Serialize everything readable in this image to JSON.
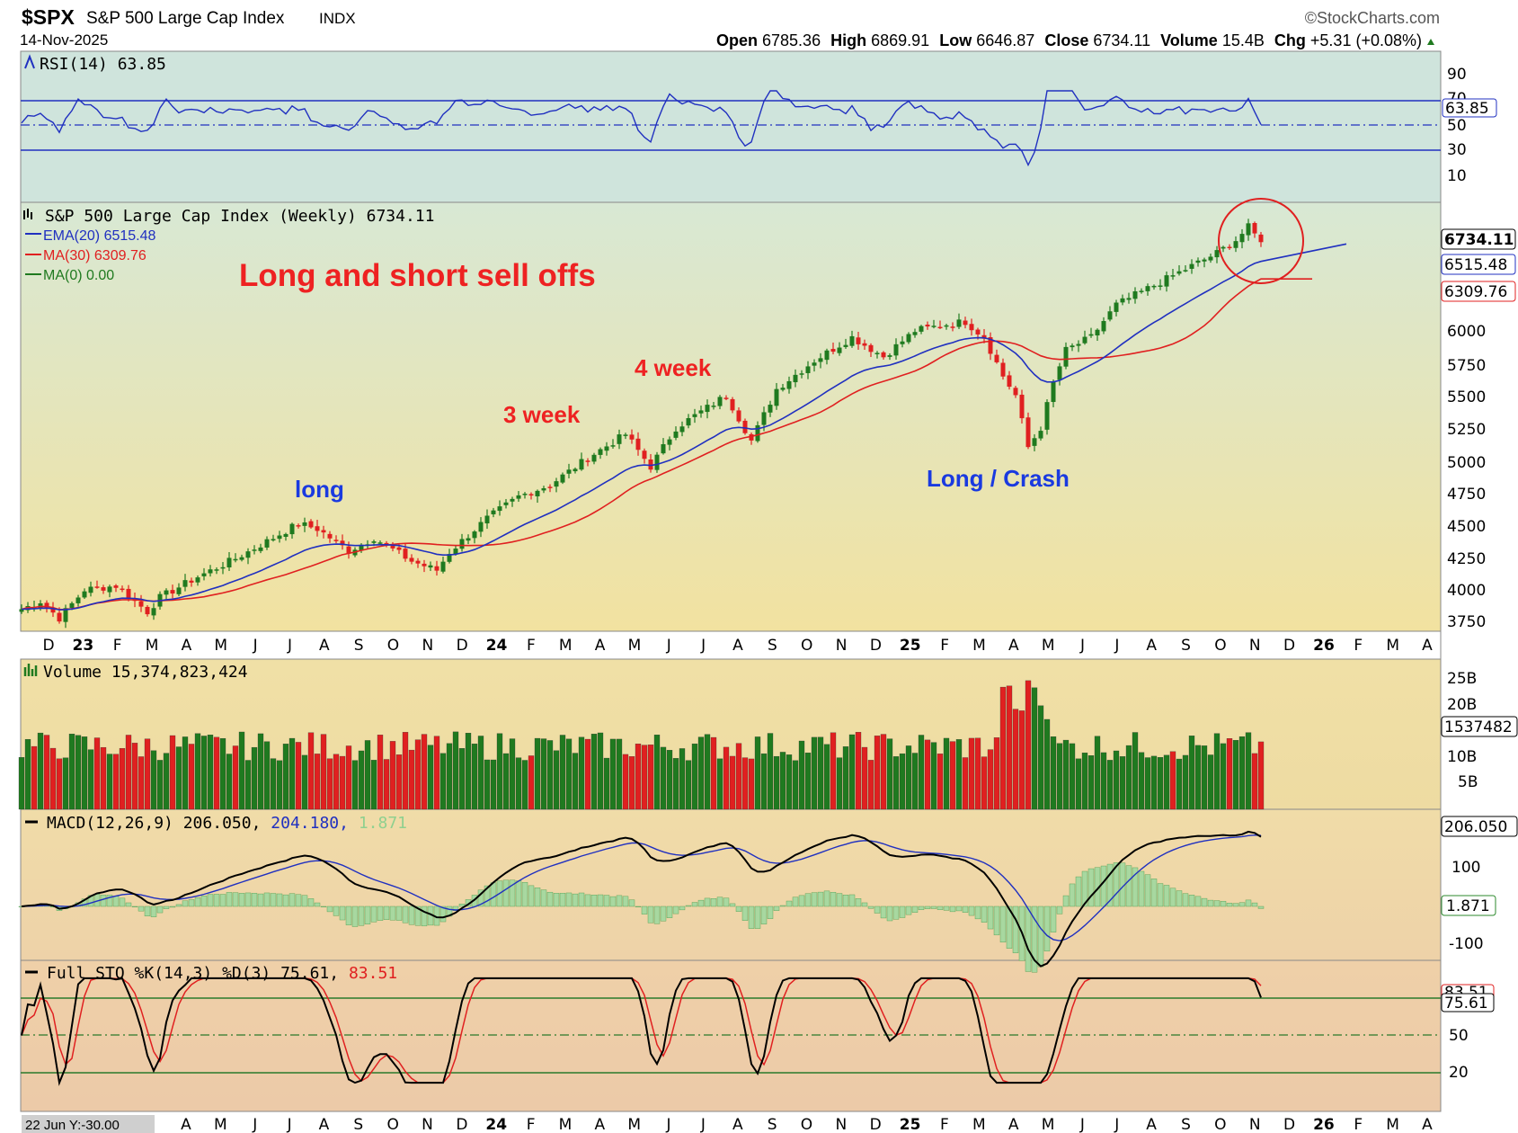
{
  "header": {
    "symbol": "$SPX",
    "name": "S&P 500 Large Cap Index",
    "exchange": "INDX",
    "brand": "©StockCharts.com",
    "date": "14-Nov-2025",
    "ohlc": {
      "open_label": "Open",
      "open": "6785.36",
      "high_label": "High",
      "high": "6869.91",
      "low_label": "Low",
      "low": "6646.87",
      "close_label": "Close",
      "close": "6734.11",
      "volume_label": "Volume",
      "volume": "15.4B",
      "chg_label": "Chg",
      "chg": "+5.31 (+0.08%)"
    }
  },
  "rsi_panel": {
    "legend": "RSI(14) 63.85",
    "value_tag": "63.85",
    "ticks": [
      "90",
      "70",
      "50",
      "30",
      "10"
    ]
  },
  "price_panel": {
    "legend_title": "S&P 500 Large Cap Index (Weekly) 6734.11",
    "legend_ema": "EMA(20) 6515.48",
    "legend_ma30": "MA(30) 6309.76",
    "legend_ma0": "MA(0) 0.00",
    "tags": {
      "close": "6734.11",
      "ema": "6515.48",
      "ma30": "6309.76"
    },
    "ticks": [
      "6000",
      "5750",
      "5500",
      "5250",
      "5000",
      "4750",
      "4500",
      "4250",
      "4000",
      "3750"
    ]
  },
  "annotations": {
    "headline": "Long and short sell offs",
    "long": "long",
    "three_week": "3 week",
    "four_week": "4 week",
    "crash": "Long / Crash"
  },
  "time_axis": {
    "labels": [
      "D",
      "23",
      "F",
      "M",
      "A",
      "M",
      "J",
      "J",
      "A",
      "S",
      "O",
      "N",
      "D",
      "24",
      "F",
      "M",
      "A",
      "M",
      "J",
      "J",
      "A",
      "S",
      "O",
      "N",
      "D",
      "25",
      "F",
      "M",
      "A",
      "M",
      "J",
      "J",
      "A",
      "S",
      "O",
      "N",
      "D",
      "26",
      "F",
      "M",
      "A"
    ],
    "bottom_labels": [
      "A",
      "M",
      "J",
      "J",
      "A",
      "S",
      "O",
      "N",
      "D",
      "24",
      "F",
      "M",
      "A",
      "M",
      "J",
      "J",
      "A",
      "S",
      "O",
      "N",
      "D",
      "25",
      "F",
      "M",
      "A",
      "M",
      "J",
      "J",
      "A",
      "S",
      "O",
      "N",
      "D",
      "26",
      "F",
      "M",
      "A"
    ],
    "crosshair_tag": "22 Jun Y:-30.00"
  },
  "volume_panel": {
    "legend": "Volume 15,374,823,424",
    "value_tag": "1537482",
    "ticks": [
      "25B",
      "20B",
      "15B",
      "10B",
      "5B"
    ]
  },
  "macd_panel": {
    "legend_prefix": "MACD(12,26,9) 206.050,",
    "legend_signal": "204.180,",
    "legend_hist": "1.871",
    "tag_macd": "206.050",
    "tag_hist": "1.871",
    "ticks": [
      "100",
      "-100"
    ]
  },
  "sto_panel": {
    "legend_prefix": "Full STO %K(14,3) %D(3) 75.61,",
    "legend_d": "83.51",
    "tag_k": "75.61",
    "tag_d": "83.51",
    "ticks": [
      "50",
      "20"
    ]
  },
  "colors": {
    "up": "#1f7a1f",
    "down": "#e02020",
    "ema": "#2030c0",
    "ma30": "#e02020",
    "annotation_red": "#ee2222",
    "annotation_blue": "#1a3ae0"
  },
  "chart_data": {
    "type": "candlestick",
    "title": "S&P 500 Large Cap Index (Weekly)",
    "x_range": [
      "Dec 2022",
      "Apr 2026"
    ],
    "price_range": [
      3700,
      6950
    ],
    "weekly_close_approx": [
      {
        "date": "2023-01",
        "close": 3900
      },
      {
        "date": "2023-03",
        "close": 3950
      },
      {
        "date": "2023-05",
        "close": 4150
      },
      {
        "date": "2023-07",
        "close": 4550
      },
      {
        "date": "2023-08",
        "close": 4500
      },
      {
        "date": "2023-10",
        "close": 4150
      },
      {
        "date": "2023-12",
        "close": 4750
      },
      {
        "date": "2024-03",
        "close": 5220
      },
      {
        "date": "2024-04",
        "close": 5000
      },
      {
        "date": "2024-07",
        "close": 5600
      },
      {
        "date": "2024-08",
        "close": 5200
      },
      {
        "date": "2024-11",
        "close": 6000
      },
      {
        "date": "2025-02",
        "close": 6100
      },
      {
        "date": "2025-04",
        "close": 5050
      },
      {
        "date": "2025-06",
        "close": 6000
      },
      {
        "date": "2025-08",
        "close": 6400
      },
      {
        "date": "2025-10",
        "close": 6700
      },
      {
        "date": "2025-11",
        "close": 6734.11
      }
    ],
    "series": [
      {
        "name": "EMA(20)",
        "last": 6515.48
      },
      {
        "name": "MA(30)",
        "last": 6309.76
      },
      {
        "name": "Volume",
        "last": 15374823424
      },
      {
        "name": "RSI(14)",
        "last": 63.85
      },
      {
        "name": "MACD",
        "last": 206.05
      },
      {
        "name": "Signal",
        "last": 204.18
      },
      {
        "name": "Histogram",
        "last": 1.871
      },
      {
        "name": "%K",
        "last": 75.61
      },
      {
        "name": "%D",
        "last": 83.51
      }
    ]
  }
}
